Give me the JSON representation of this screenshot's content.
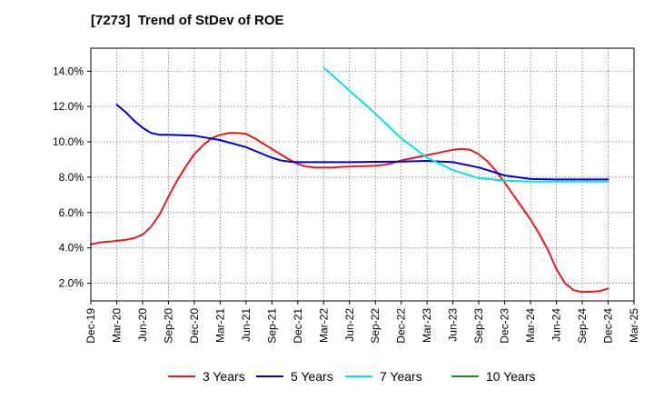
{
  "chart_data": {
    "type": "line",
    "title": "[7273]  Trend of StDev of ROE",
    "xlabel": "",
    "ylabel": "",
    "x_ticks": [
      "Dec-19",
      "Mar-20",
      "Jun-20",
      "Sep-20",
      "Dec-20",
      "Mar-21",
      "Jun-21",
      "Sep-21",
      "Dec-21",
      "Mar-22",
      "Jun-22",
      "Sep-22",
      "Dec-22",
      "Mar-23",
      "Jun-23",
      "Sep-23",
      "Dec-23",
      "Mar-24",
      "Jun-24",
      "Sep-24",
      "Dec-24",
      "Mar-25"
    ],
    "y_ticks": [
      "2.0%",
      "4.0%",
      "6.0%",
      "8.0%",
      "10.0%",
      "12.0%",
      "14.0%"
    ],
    "y_tick_values": [
      2,
      4,
      6,
      8,
      10,
      12,
      14
    ],
    "ylim": [
      1.0,
      15.3
    ],
    "grid": true,
    "legend_position": "bottom",
    "series": [
      {
        "name": "3 Years",
        "color": "#e41a1c",
        "points": [
          [
            "Dec-19",
            4.2
          ],
          [
            "Jan-20",
            4.3
          ],
          [
            "Feb-20",
            4.35
          ],
          [
            "Mar-20",
            4.4
          ],
          [
            "Apr-20",
            4.45
          ],
          [
            "May-20",
            4.55
          ],
          [
            "Jun-20",
            4.75
          ],
          [
            "Jul-20",
            5.2
          ],
          [
            "Aug-20",
            5.9
          ],
          [
            "Sep-20",
            6.9
          ],
          [
            "Oct-20",
            7.8
          ],
          [
            "Nov-20",
            8.6
          ],
          [
            "Dec-20",
            9.3
          ],
          [
            "Jan-21",
            9.8
          ],
          [
            "Feb-21",
            10.2
          ],
          [
            "Mar-21",
            10.4
          ],
          [
            "Apr-21",
            10.5
          ],
          [
            "May-21",
            10.5
          ],
          [
            "Jun-21",
            10.45
          ],
          [
            "Jul-21",
            10.2
          ],
          [
            "Aug-21",
            9.9
          ],
          [
            "Sep-21",
            9.6
          ],
          [
            "Oct-21",
            9.3
          ],
          [
            "Nov-21",
            9.0
          ],
          [
            "Dec-21",
            8.75
          ],
          [
            "Jan-22",
            8.6
          ],
          [
            "Feb-22",
            8.55
          ],
          [
            "Mar-22",
            8.55
          ],
          [
            "Apr-22",
            8.55
          ],
          [
            "May-22",
            8.58
          ],
          [
            "Jun-22",
            8.6
          ],
          [
            "Jul-22",
            8.62
          ],
          [
            "Aug-22",
            8.63
          ],
          [
            "Sep-22",
            8.65
          ],
          [
            "Oct-22",
            8.7
          ],
          [
            "Nov-22",
            8.8
          ],
          [
            "Dec-22",
            8.95
          ],
          [
            "Jan-23",
            9.05
          ],
          [
            "Feb-23",
            9.15
          ],
          [
            "Mar-23",
            9.25
          ],
          [
            "Apr-23",
            9.35
          ],
          [
            "May-23",
            9.45
          ],
          [
            "Jun-23",
            9.55
          ],
          [
            "Jul-23",
            9.6
          ],
          [
            "Aug-23",
            9.55
          ],
          [
            "Sep-23",
            9.3
          ],
          [
            "Oct-23",
            8.9
          ],
          [
            "Nov-23",
            8.35
          ],
          [
            "Dec-23",
            7.7
          ],
          [
            "Jan-24",
            7.0
          ],
          [
            "Feb-24",
            6.3
          ],
          [
            "Mar-24",
            5.6
          ],
          [
            "Apr-24",
            4.8
          ],
          [
            "May-24",
            3.9
          ],
          [
            "Jun-24",
            2.8
          ],
          [
            "Jul-24",
            2.0
          ],
          [
            "Aug-24",
            1.6
          ],
          [
            "Sep-24",
            1.5
          ],
          [
            "Oct-24",
            1.52
          ],
          [
            "Nov-24",
            1.55
          ],
          [
            "Dec-24",
            1.7
          ]
        ]
      },
      {
        "name": "5 Years",
        "color": "#0000cc",
        "points": [
          [
            "Mar-20",
            12.1
          ],
          [
            "Apr-20",
            11.7
          ],
          [
            "May-20",
            11.2
          ],
          [
            "Jun-20",
            10.8
          ],
          [
            "Jul-20",
            10.5
          ],
          [
            "Aug-20",
            10.4
          ],
          [
            "Sep-20",
            10.4
          ],
          [
            "Dec-20",
            10.35
          ],
          [
            "Mar-21",
            10.1
          ],
          [
            "Jun-21",
            9.7
          ],
          [
            "Sep-21",
            9.1
          ],
          [
            "Oct-21",
            8.95
          ],
          [
            "Nov-21",
            8.88
          ],
          [
            "Dec-21",
            8.85
          ],
          [
            "Mar-22",
            8.85
          ],
          [
            "Jun-22",
            8.85
          ],
          [
            "Sep-22",
            8.87
          ],
          [
            "Dec-22",
            8.88
          ],
          [
            "Mar-23",
            8.92
          ],
          [
            "Jun-23",
            8.85
          ],
          [
            "Sep-23",
            8.55
          ],
          [
            "Dec-23",
            8.1
          ],
          [
            "Mar-24",
            7.9
          ],
          [
            "Jun-24",
            7.87
          ],
          [
            "Sep-24",
            7.87
          ],
          [
            "Dec-24",
            7.87
          ]
        ]
      },
      {
        "name": "7 Years",
        "color": "#00e5e5",
        "points": [
          [
            "Mar-22",
            14.2
          ],
          [
            "Jun-22",
            12.9
          ],
          [
            "Sep-22",
            11.6
          ],
          [
            "Dec-22",
            10.2
          ],
          [
            "Mar-23",
            9.1
          ],
          [
            "Jun-23",
            8.4
          ],
          [
            "Sep-23",
            7.95
          ],
          [
            "Dec-23",
            7.8
          ],
          [
            "Mar-24",
            7.75
          ],
          [
            "Jun-24",
            7.75
          ],
          [
            "Sep-24",
            7.75
          ],
          [
            "Dec-24",
            7.75
          ]
        ]
      },
      {
        "name": "10 Years",
        "color": "#228b22",
        "points": []
      }
    ]
  }
}
